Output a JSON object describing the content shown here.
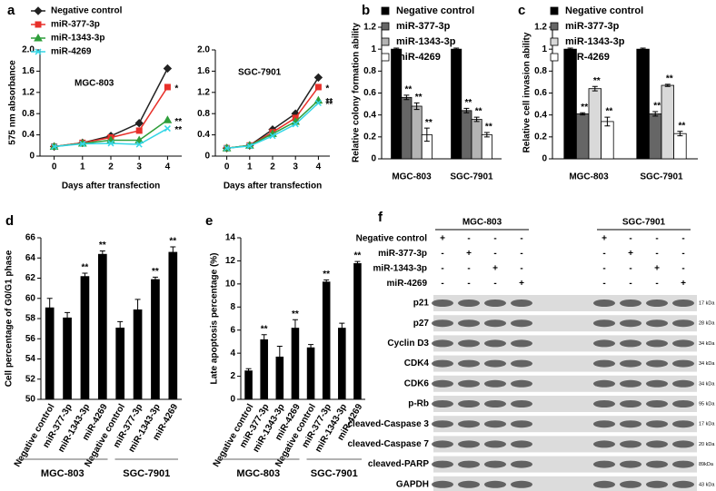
{
  "chart_data": [
    {
      "type": "line",
      "panel": "a",
      "subtitle": "MGC-803",
      "xlabel": "Days after transfection",
      "ylabel": "575 nm absorbance",
      "x": [
        0,
        1,
        2,
        3,
        4
      ],
      "xlim": [
        -0.5,
        4.5
      ],
      "xticks": [
        0,
        1,
        2,
        3,
        4
      ],
      "ylim": [
        0,
        2
      ],
      "yticks": [
        0,
        0.4,
        0.8,
        1.2,
        1.6,
        {
          "value": 2,
          "label": "2.0"
        }
      ],
      "legend": "upper left",
      "series": [
        {
          "name": "Negative control",
          "color": "#222222",
          "marker": "diamond",
          "values": [
            0.18,
            0.25,
            0.38,
            0.62,
            1.65
          ],
          "significance": [
            null,
            null,
            null,
            null,
            null
          ]
        },
        {
          "name": "miR-377-3p",
          "color": "#e8302a",
          "marker": "square",
          "values": [
            0.18,
            0.25,
            0.35,
            0.48,
            1.3
          ],
          "significance": [
            null,
            null,
            null,
            null,
            "*"
          ]
        },
        {
          "name": "miR-1343-3p",
          "color": "#2e9e3a",
          "marker": "triangle",
          "values": [
            0.18,
            0.24,
            0.3,
            0.3,
            0.68
          ],
          "significance": [
            null,
            null,
            null,
            null,
            "**"
          ]
        },
        {
          "name": "miR-4269",
          "color": "#33d6e6",
          "marker": "cross",
          "values": [
            0.18,
            0.23,
            0.24,
            0.22,
            0.52
          ],
          "significance": [
            null,
            null,
            null,
            null,
            "**"
          ]
        }
      ]
    },
    {
      "type": "line",
      "subtitle": "SGC-7901",
      "xlabel": "Days after transfection",
      "x": [
        0,
        1,
        2,
        3,
        4
      ],
      "xlim": [
        -0.5,
        4.5
      ],
      "xticks": [
        0,
        1,
        2,
        3,
        4
      ],
      "ylim": [
        0,
        2
      ],
      "yticks": [
        0,
        0.4,
        0.8,
        1.2,
        1.6,
        {
          "value": 2,
          "label": "2.0"
        }
      ],
      "series": [
        {
          "color": "#222222",
          "marker": "diamond",
          "values": [
            0.15,
            0.2,
            0.5,
            0.8,
            1.48
          ],
          "significance": [
            null,
            null,
            null,
            null,
            null
          ]
        },
        {
          "color": "#e8302a",
          "marker": "square",
          "values": [
            0.15,
            0.2,
            0.45,
            0.72,
            1.3
          ],
          "significance": [
            null,
            null,
            null,
            null,
            "*"
          ]
        },
        {
          "color": "#2e9e3a",
          "marker": "triangle",
          "values": [
            0.15,
            0.2,
            0.42,
            0.65,
            1.05
          ],
          "significance": [
            null,
            null,
            null,
            null,
            "**"
          ]
        },
        {
          "color": "#33d6e6",
          "marker": "cross",
          "values": [
            0.15,
            0.19,
            0.38,
            0.6,
            1.0
          ],
          "significance": [
            null,
            null,
            null,
            null,
            "**"
          ]
        }
      ]
    },
    {
      "type": "bar",
      "panel": "b",
      "ylabel": "Relative colony formation ability",
      "categories": [
        "MGC-803",
        "SGC-7901"
      ],
      "ylim": [
        0,
        1.2
      ],
      "yticks": [
        0,
        0.2,
        0.4,
        0.6,
        0.8,
        1,
        1.2
      ],
      "legend": "upper center",
      "series": [
        {
          "name": "Negative control",
          "color": "#000000",
          "values": [
            1,
            1
          ],
          "errors": [
            0.01,
            0.01
          ],
          "significance": [
            null,
            null
          ]
        },
        {
          "name": "miR-377-3p",
          "color": "#666666",
          "values": [
            0.56,
            0.44
          ],
          "errors": [
            0.02,
            0.02
          ],
          "significance": [
            "**",
            "**"
          ]
        },
        {
          "name": "miR-1343-3p",
          "color": "#b4b4b4",
          "values": [
            0.48,
            0.36
          ],
          "errors": [
            0.03,
            0.02
          ],
          "significance": [
            "**",
            "**"
          ]
        },
        {
          "name": "miR-4269",
          "color": "#ffffff",
          "values": [
            0.22,
            0.22
          ],
          "errors": [
            0.06,
            0.02
          ],
          "significance": [
            "**",
            "**"
          ]
        }
      ]
    },
    {
      "type": "bar",
      "panel": "c",
      "ylabel": "Relative cell invasion ability",
      "categories": [
        "MGC-803",
        "SGC-7901"
      ],
      "ylim": [
        0,
        1.2
      ],
      "yticks": [
        0,
        0.2,
        0.4,
        0.6,
        0.8,
        1,
        1.2
      ],
      "legend": "upper center",
      "series": [
        {
          "name": "Negative control",
          "color": "#000000",
          "values": [
            1,
            1
          ],
          "errors": [
            0.01,
            0.01
          ],
          "significance": [
            null,
            null
          ]
        },
        {
          "name": "miR-377-3p",
          "color": "#666666",
          "values": [
            0.41,
            0.41
          ],
          "errors": [
            0.01,
            0.02
          ],
          "significance": [
            "**",
            "**"
          ]
        },
        {
          "name": "miR-1343-3p",
          "color": "#d9d9d9",
          "values": [
            0.64,
            0.67
          ],
          "errors": [
            0.02,
            0.01
          ],
          "significance": [
            "**",
            "**"
          ]
        },
        {
          "name": "miR-4269",
          "color": "#ffffff",
          "values": [
            0.34,
            0.23
          ],
          "errors": [
            0.04,
            0.02
          ],
          "significance": [
            "**",
            "**"
          ]
        }
      ]
    },
    {
      "type": "bar",
      "panel": "d",
      "ylabel": "Cell percentage of  G0/G1 phase",
      "color": "#000000",
      "categories": [
        "Negative control",
        "miR-377-3p",
        "miR-1343-3p",
        "miR-4269",
        "Negative control",
        "miR-377-3p",
        "miR-1343-3p",
        "miR-4269"
      ],
      "groups": [
        "MGC-803",
        "SGC-7901"
      ],
      "values": [
        59.1,
        58.1,
        62.2,
        64.4,
        57.1,
        58.9,
        61.9,
        64.6
      ],
      "errors": [
        0.9,
        0.5,
        0.3,
        0.3,
        0.6,
        1.0,
        0.2,
        0.5
      ],
      "significance": [
        null,
        null,
        "**",
        "**",
        null,
        null,
        "**",
        "**"
      ],
      "ylim": [
        50,
        66
      ],
      "yticks": [
        50,
        52,
        54,
        56,
        58,
        60,
        62,
        64,
        66
      ]
    },
    {
      "type": "bar",
      "panel": "e",
      "ylabel": "Late apoptosis percentage (%)",
      "color": "#000000",
      "categories": [
        "Negative control",
        "miR-377-3p",
        "miR-1343-3p",
        "miR-4269",
        "Negative control",
        "miR-377-3p",
        "miR-1343-3p",
        "miR-4269"
      ],
      "groups": [
        "MGC-803",
        "SGC-7901"
      ],
      "values": [
        2.5,
        5.2,
        3.7,
        6.2,
        4.5,
        10.2,
        6.2,
        11.8
      ],
      "errors": [
        0.15,
        0.4,
        0.9,
        0.7,
        0.25,
        0.15,
        0.4,
        0.15
      ],
      "significance": [
        null,
        "**",
        null,
        "**",
        null,
        "**",
        null,
        "**"
      ],
      "ylim": [
        0,
        14
      ],
      "yticks": [
        0,
        2,
        4,
        6,
        8,
        10,
        12,
        14
      ]
    }
  ],
  "blot": {
    "panel": "f",
    "groups": [
      "MGC-803",
      "SGC-7901"
    ],
    "conditions": [
      {
        "name": "Negative control",
        "signs": [
          "+",
          "-",
          "-",
          "-",
          "+",
          "-",
          "-",
          "-"
        ]
      },
      {
        "name": "miR-377-3p",
        "signs": [
          "-",
          "+",
          "-",
          "-",
          "-",
          "+",
          "-",
          "-"
        ]
      },
      {
        "name": "miR-1343-3p",
        "signs": [
          "-",
          "-",
          "+",
          "-",
          "-",
          "-",
          "+",
          "-"
        ]
      },
      {
        "name": "miR-4269",
        "signs": [
          "-",
          "-",
          "-",
          "+",
          "-",
          "-",
          "-",
          "+"
        ]
      }
    ],
    "proteins": [
      {
        "name": "p21",
        "size": "17 kDa"
      },
      {
        "name": "p27",
        "size": "28 kDa"
      },
      {
        "name": "Cyclin D3",
        "size": "34 kDa"
      },
      {
        "name": "CDK4",
        "size": "34 kDa"
      },
      {
        "name": "CDK6",
        "size": "34 kDa"
      },
      {
        "name": "p-Rb",
        "size": "95 kDa"
      },
      {
        "name": "cleaved-Caspase 3",
        "size": "17 kDa"
      },
      {
        "name": "cleaved-Caspase 7",
        "size": "20 kDa"
      },
      {
        "name": "cleaved-PARP",
        "size": "89kDa"
      },
      {
        "name": "GAPDH",
        "size": "43 kDa"
      }
    ]
  }
}
